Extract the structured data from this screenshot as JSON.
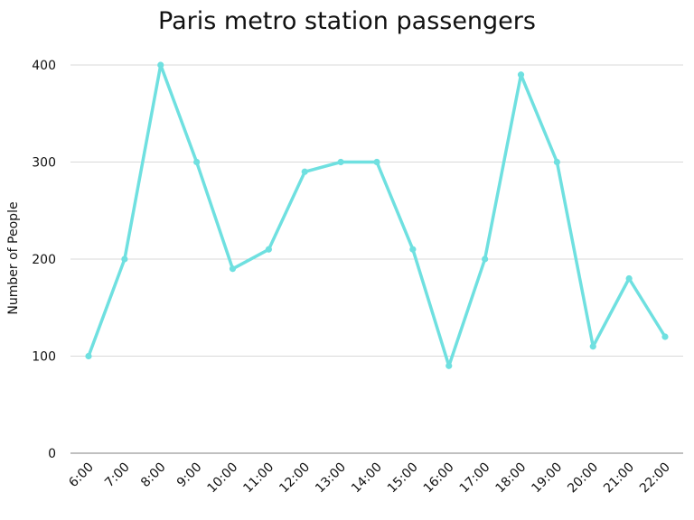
{
  "chart_data": {
    "type": "line",
    "title": "Paris metro station passengers",
    "xlabel": "",
    "ylabel": "Number of People",
    "categories": [
      "6:00",
      "7:00",
      "8:00",
      "9:00",
      "10:00",
      "11:00",
      "12:00",
      "13:00",
      "14:00",
      "15:00",
      "16:00",
      "17:00",
      "18:00",
      "19:00",
      "20:00",
      "21:00",
      "22:00"
    ],
    "series": [
      {
        "values": [
          100,
          200,
          400,
          300,
          190,
          210,
          290,
          300,
          300,
          210,
          90,
          200,
          390,
          300,
          110,
          180,
          120
        ],
        "color": "#6fe0e0"
      }
    ],
    "yticks": [
      0,
      100,
      200,
      300,
      400
    ],
    "ylim": [
      0,
      400
    ],
    "grid": true,
    "legend": "none"
  }
}
